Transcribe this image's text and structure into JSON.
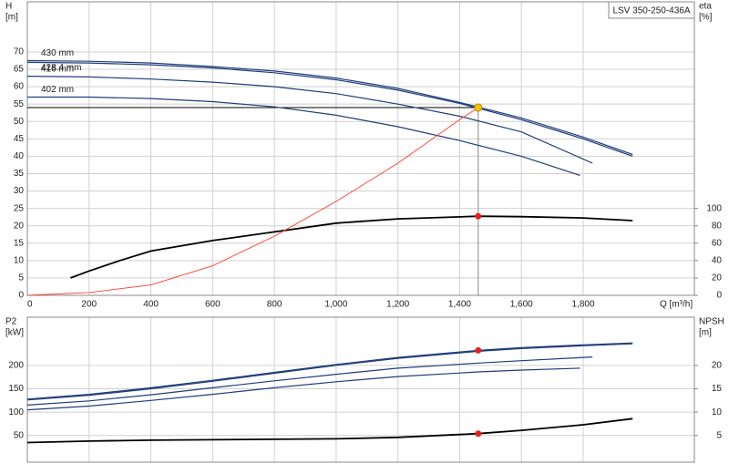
{
  "chart_data": [
    {
      "type": "line",
      "title": "LSV 350-250-436A",
      "y_label": "H",
      "y_unit": "[m]",
      "y2_label": "eta",
      "y2_unit": "[%]",
      "x_label": "Q [m³/h]",
      "xlim": [
        0,
        2160
      ],
      "ylim": [
        0,
        84.4
      ],
      "y2lim": [
        0,
        337.6
      ],
      "xticks": [
        0,
        200,
        400,
        600,
        800,
        {
          "value": 1000,
          "label": "1,000"
        },
        {
          "value": 1200,
          "label": "1,200"
        },
        {
          "value": 1400,
          "label": "1,400"
        },
        {
          "value": 1600,
          "label": "1,600"
        },
        {
          "value": 1800,
          "label": "1,800"
        }
      ],
      "yticks": [
        0,
        5,
        10,
        15,
        20,
        25,
        30,
        35,
        40,
        45,
        50,
        55,
        60,
        65,
        70
      ],
      "y2ticks": [
        0,
        20,
        40,
        60,
        80,
        100
      ],
      "grid": true,
      "series": [
        {
          "name": "430 mm",
          "color": "#1f3d7a",
          "x": [
            0,
            200,
            400,
            600,
            800,
            1000,
            1200,
            1400,
            1600,
            1800,
            1960
          ],
          "values": [
            67.5,
            67.3,
            66.8,
            65.8,
            64.5,
            62.5,
            59.5,
            55.5,
            51,
            45.5,
            40.5
          ]
        },
        {
          "name": "428.4 mm",
          "color": "#1f3d7a",
          "x": [
            0,
            200,
            400,
            600,
            800,
            1000,
            1200,
            1400,
            1600,
            1800,
            1960
          ],
          "values": [
            67,
            66.8,
            66.3,
            65.4,
            64,
            62,
            59,
            55.2,
            50.5,
            45,
            40
          ]
        },
        {
          "name": "416 mm",
          "color": "#1f3d7a",
          "x": [
            0,
            200,
            400,
            600,
            800,
            1000,
            1200,
            1400,
            1600,
            1830
          ],
          "values": [
            63,
            62.8,
            62.2,
            61.3,
            60,
            58,
            55,
            51.5,
            47,
            38
          ]
        },
        {
          "name": "402 mm",
          "color": "#1f3d7a",
          "x": [
            0,
            200,
            400,
            600,
            800,
            1000,
            1200,
            1400,
            1600,
            1790
          ],
          "values": [
            57,
            57,
            56.6,
            55.7,
            54.2,
            51.8,
            48.5,
            44.5,
            40,
            34.5
          ]
        },
        {
          "color": "#000000",
          "axis": "y2",
          "x": [
            140,
            200,
            300,
            400,
            600,
            800,
            1000,
            1200,
            1460,
            1600,
            1800,
            1960
          ],
          "values": [
            20,
            28,
            40,
            51,
            63,
            73,
            83,
            88,
            91,
            90.5,
            89,
            86
          ]
        },
        {
          "color": "#ff3b30",
          "x": [
            0,
            200,
            400,
            600,
            800,
            1000,
            1200,
            1400,
            1460
          ],
          "values": [
            0,
            0.8,
            3,
            8.5,
            17,
            27,
            38,
            50.5,
            54
          ]
        }
      ],
      "duty_point": {
        "x": 1460,
        "y": 54,
        "color": "#f5c400"
      },
      "markers": [
        {
          "x": 1460,
          "y": 91,
          "axis": "y2",
          "color": "#e8201a"
        }
      ]
    },
    {
      "type": "line",
      "y_label": "P2",
      "y_unit": "[kW]",
      "y2_label": "NPSH",
      "y2_unit": "[m]",
      "xlim": [
        0,
        2160
      ],
      "ylim": [
        -7,
        303
      ],
      "y2lim": [
        -0.7,
        30.3
      ],
      "xticks": [
        0,
        200,
        400,
        600,
        800,
        1000,
        1200,
        1400,
        1600,
        1800
      ],
      "yticks": [
        50,
        100,
        150,
        200
      ],
      "y2ticks": [
        5,
        10,
        15,
        20
      ],
      "grid": true,
      "series": [
        {
          "color": "#1f3d7a",
          "x": [
            0,
            200,
            400,
            600,
            800,
            1000,
            1200,
            1460,
            1600,
            1800,
            1960
          ],
          "values": [
            128,
            138,
            152,
            168,
            185,
            202,
            217,
            232,
            238,
            244,
            248
          ]
        },
        {
          "color": "#1f3d7a",
          "x": [
            0,
            200,
            400,
            600,
            800,
            1000,
            1200,
            1460,
            1600,
            1800,
            1960
          ],
          "values": [
            126,
            136,
            150,
            166,
            183,
            200,
            215,
            230,
            236,
            242,
            246
          ]
        },
        {
          "color": "#1f3d7a",
          "x": [
            0,
            200,
            400,
            600,
            800,
            1000,
            1200,
            1460,
            1600,
            1830
          ],
          "values": [
            115,
            124,
            137,
            152,
            167,
            181,
            194,
            205,
            210,
            218
          ]
        },
        {
          "color": "#1f3d7a",
          "x": [
            0,
            200,
            400,
            600,
            800,
            1000,
            1200,
            1460,
            1600,
            1790
          ],
          "values": [
            105,
            113,
            125,
            138,
            152,
            165,
            176,
            186,
            190,
            194
          ]
        },
        {
          "color": "#000000",
          "axis": "y2",
          "x": [
            0,
            200,
            400,
            600,
            800,
            1000,
            1200,
            1460,
            1600,
            1800,
            1960
          ],
          "values": [
            3.5,
            3.8,
            4.0,
            4.1,
            4.2,
            4.3,
            4.6,
            5.4,
            6.1,
            7.3,
            8.6
          ]
        }
      ],
      "markers": [
        {
          "x": 1460,
          "y": 232,
          "color": "#e8201a"
        },
        {
          "x": 1460,
          "y": 5.4,
          "axis": "y2",
          "color": "#e8201a"
        }
      ]
    }
  ]
}
